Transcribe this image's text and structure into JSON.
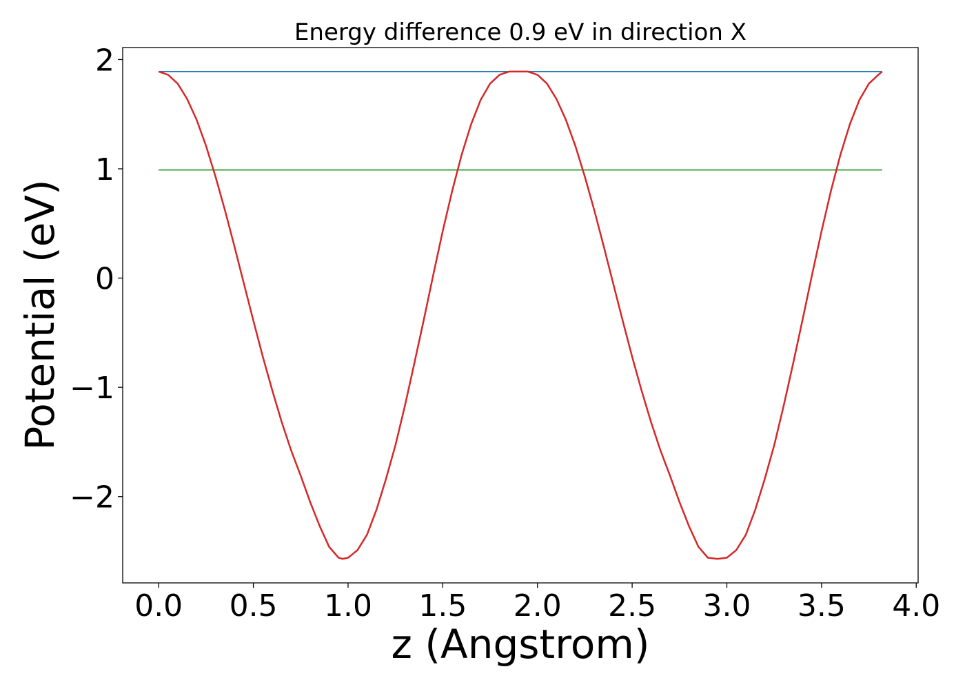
{
  "chart_data": {
    "type": "line",
    "title": "Energy difference 0.9 eV in direction X",
    "xlabel": "z (Angstrom)",
    "ylabel": "Potential (eV)",
    "xlim": [
      -0.19,
      4.01
    ],
    "ylim": [
      -2.79,
      2.11
    ],
    "xticks": [
      0.0,
      0.5,
      1.0,
      1.5,
      2.0,
      2.5,
      3.0,
      3.5,
      4.0
    ],
    "xtick_labels": [
      "0.0",
      "0.5",
      "1.0",
      "1.5",
      "2.0",
      "2.5",
      "3.0",
      "3.5",
      "4.0"
    ],
    "yticks": [
      -2,
      -1,
      0,
      1,
      2
    ],
    "ytick_labels": [
      "−2",
      "−1",
      "0",
      "1",
      "2"
    ],
    "grid": false,
    "series": [
      {
        "color": "#1f77b4",
        "x": [
          0.0,
          3.82
        ],
        "y": [
          1.89,
          1.89
        ]
      },
      {
        "color": "#2ca02c",
        "x": [
          0.0,
          3.82
        ],
        "y": [
          0.99,
          0.99
        ]
      },
      {
        "color": "#d62728",
        "x": [
          0.0,
          0.05,
          0.1,
          0.15,
          0.2,
          0.25,
          0.3,
          0.35,
          0.4,
          0.45,
          0.5,
          0.55,
          0.6,
          0.65,
          0.7,
          0.75,
          0.8,
          0.85,
          0.9,
          0.95,
          0.97,
          1.0,
          1.05,
          1.1,
          1.15,
          1.2,
          1.25,
          1.3,
          1.35,
          1.4,
          1.45,
          1.5,
          1.55,
          1.6,
          1.65,
          1.7,
          1.75,
          1.8,
          1.85,
          1.9,
          1.93,
          1.95,
          2.0,
          2.05,
          2.1,
          2.15,
          2.2,
          2.25,
          2.3,
          2.35,
          2.4,
          2.45,
          2.5,
          2.55,
          2.6,
          2.65,
          2.7,
          2.75,
          2.8,
          2.85,
          2.9,
          2.95,
          3.0,
          3.05,
          3.1,
          3.15,
          3.2,
          3.25,
          3.3,
          3.35,
          3.4,
          3.45,
          3.5,
          3.55,
          3.6,
          3.65,
          3.7,
          3.75,
          3.8,
          3.82
        ],
        "y": [
          1.89,
          1.86,
          1.78,
          1.64,
          1.45,
          1.21,
          0.93,
          0.62,
          0.29,
          -0.05,
          -0.39,
          -0.72,
          -1.03,
          -1.32,
          -1.58,
          -1.81,
          -2.05,
          -2.27,
          -2.46,
          -2.56,
          -2.57,
          -2.56,
          -2.49,
          -2.35,
          -2.12,
          -1.84,
          -1.53,
          -1.17,
          -0.78,
          -0.38,
          0.03,
          0.43,
          0.8,
          1.13,
          1.41,
          1.63,
          1.78,
          1.86,
          1.89,
          1.89,
          1.89,
          1.89,
          1.86,
          1.78,
          1.64,
          1.45,
          1.21,
          0.93,
          0.62,
          0.29,
          -0.05,
          -0.39,
          -0.72,
          -1.03,
          -1.32,
          -1.58,
          -1.81,
          -2.05,
          -2.27,
          -2.46,
          -2.56,
          -2.57,
          -2.56,
          -2.49,
          -2.35,
          -2.12,
          -1.84,
          -1.53,
          -1.17,
          -0.78,
          -0.38,
          0.03,
          0.43,
          0.8,
          1.13,
          1.41,
          1.63,
          1.78,
          1.86,
          1.89
        ]
      }
    ]
  }
}
